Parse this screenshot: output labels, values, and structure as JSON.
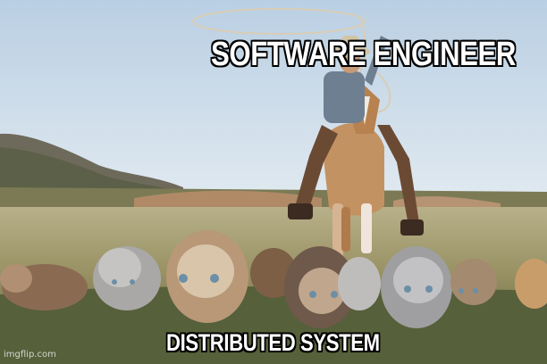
{
  "meme": {
    "top_caption": "SOFTWARE ENGINEER",
    "bottom_caption": "DISTRIBUTED SYSTEM",
    "watermark": "imgflip.com"
  },
  "scene": {
    "sky_color": "#cfdce9",
    "ground_color": "#8f8a5e",
    "subjects": [
      "cowboy-on-horse",
      "lasso",
      "kittens"
    ]
  }
}
